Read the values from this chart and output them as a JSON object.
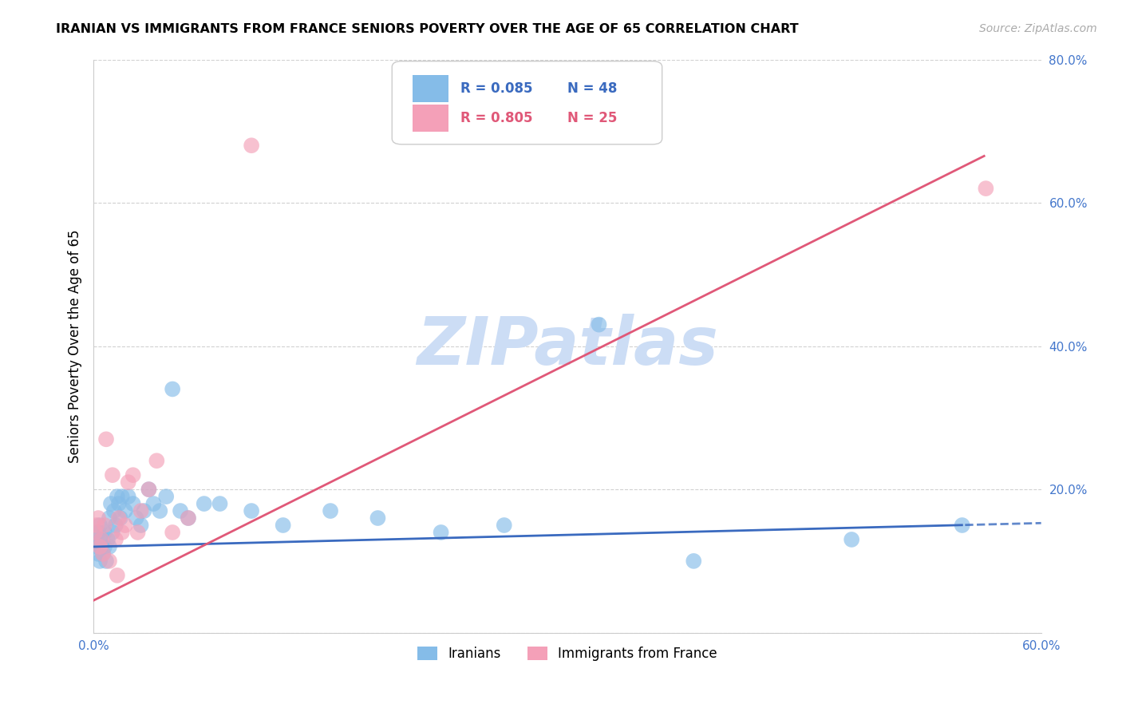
{
  "title": "IRANIAN VS IMMIGRANTS FROM FRANCE SENIORS POVERTY OVER THE AGE OF 65 CORRELATION CHART",
  "source": "Source: ZipAtlas.com",
  "ylabel": "Seniors Poverty Over the Age of 65",
  "xmin": 0.0,
  "xmax": 0.6,
  "ymin": 0.0,
  "ymax": 0.8,
  "xticks": [
    0.0,
    0.6
  ],
  "yticks": [
    0.0,
    0.2,
    0.4,
    0.6,
    0.8
  ],
  "ytick_labels": [
    "",
    "20.0%",
    "40.0%",
    "60.0%",
    "80.0%"
  ],
  "xtick_labels": [
    "0.0%",
    "60.0%"
  ],
  "iranians_color": "#85bce8",
  "france_color": "#f4a0b8",
  "trend_iranians_color": "#3a6abf",
  "trend_france_color": "#e05878",
  "watermark": "ZIPatlas",
  "watermark_color": "#ccddf5",
  "iranians_x": [
    0.001,
    0.002,
    0.003,
    0.003,
    0.004,
    0.004,
    0.005,
    0.005,
    0.006,
    0.007,
    0.007,
    0.008,
    0.009,
    0.01,
    0.01,
    0.011,
    0.012,
    0.013,
    0.014,
    0.015,
    0.016,
    0.017,
    0.018,
    0.02,
    0.022,
    0.025,
    0.027,
    0.03,
    0.032,
    0.035,
    0.038,
    0.042,
    0.046,
    0.05,
    0.055,
    0.06,
    0.07,
    0.08,
    0.1,
    0.12,
    0.15,
    0.18,
    0.22,
    0.26,
    0.32,
    0.38,
    0.48,
    0.55
  ],
  "iranians_y": [
    0.13,
    0.12,
    0.11,
    0.14,
    0.1,
    0.15,
    0.12,
    0.13,
    0.11,
    0.14,
    0.12,
    0.1,
    0.13,
    0.16,
    0.12,
    0.18,
    0.14,
    0.17,
    0.15,
    0.19,
    0.18,
    0.16,
    0.19,
    0.17,
    0.19,
    0.18,
    0.16,
    0.15,
    0.17,
    0.2,
    0.18,
    0.17,
    0.19,
    0.34,
    0.17,
    0.16,
    0.18,
    0.18,
    0.17,
    0.15,
    0.17,
    0.16,
    0.14,
    0.15,
    0.43,
    0.1,
    0.13,
    0.15
  ],
  "france_x": [
    0.001,
    0.002,
    0.003,
    0.004,
    0.005,
    0.006,
    0.007,
    0.008,
    0.01,
    0.012,
    0.014,
    0.015,
    0.016,
    0.018,
    0.02,
    0.022,
    0.025,
    0.028,
    0.03,
    0.035,
    0.04,
    0.05,
    0.06,
    0.1,
    0.565
  ],
  "france_y": [
    0.14,
    0.15,
    0.16,
    0.12,
    0.13,
    0.11,
    0.15,
    0.27,
    0.1,
    0.22,
    0.13,
    0.08,
    0.16,
    0.14,
    0.15,
    0.21,
    0.22,
    0.14,
    0.17,
    0.2,
    0.24,
    0.14,
    0.16,
    0.68,
    0.62
  ],
  "iran_trend_slope": 0.055,
  "iran_trend_intercept": 0.12,
  "france_trend_slope": 1.1,
  "france_trend_intercept": 0.045
}
